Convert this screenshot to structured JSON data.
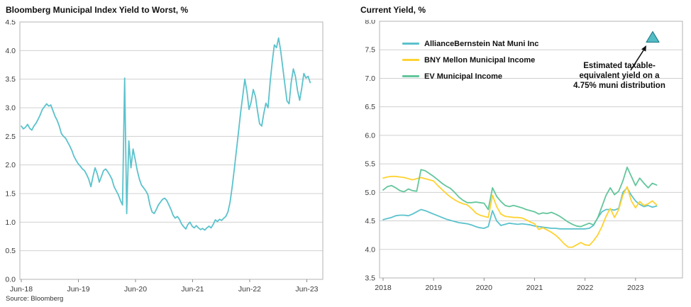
{
  "chart_data": [
    {
      "id": "bloomberg-muni-index-ytw",
      "type": "line",
      "title": "Bloomberg Municipal Index Yield to Worst, %",
      "source": "Source: Bloomberg",
      "grid": "horizontal",
      "legend_position": "none",
      "ylim": [
        0.0,
        4.5
      ],
      "yticks": [
        "0.0",
        "0.5",
        "1.0",
        "1.5",
        "2.0",
        "2.5",
        "3.0",
        "3.5",
        "4.0",
        "4.5"
      ],
      "xlim": [
        2018.395,
        2023.7
      ],
      "xticks": [
        {
          "label": "Jun-18",
          "x": 2018.42
        },
        {
          "label": "Jun-19",
          "x": 2019.42
        },
        {
          "label": "Jun-20",
          "x": 2020.42
        },
        {
          "label": "Jun-21",
          "x": 2021.42
        },
        {
          "label": "Jun-22",
          "x": 2022.42
        },
        {
          "label": "Jun-23",
          "x": 2023.42
        }
      ],
      "series": [
        {
          "name": "Bloomberg Municipal Index Yield to Worst",
          "color": "#5BC2CC",
          "x_start": 2018.42,
          "x_step": 0.03693,
          "values": [
            2.68,
            2.63,
            2.66,
            2.71,
            2.64,
            2.61,
            2.68,
            2.73,
            2.8,
            2.88,
            2.97,
            3.02,
            3.07,
            3.03,
            3.05,
            2.95,
            2.85,
            2.78,
            2.68,
            2.55,
            2.5,
            2.47,
            2.4,
            2.33,
            2.25,
            2.15,
            2.08,
            2.02,
            1.98,
            1.93,
            1.9,
            1.83,
            1.75,
            1.62,
            1.8,
            1.95,
            1.85,
            1.7,
            1.8,
            1.9,
            1.93,
            1.88,
            1.82,
            1.75,
            1.62,
            1.55,
            1.48,
            1.38,
            1.3,
            3.52,
            1.15,
            2.42,
            1.95,
            2.28,
            2.1,
            1.9,
            1.75,
            1.65,
            1.6,
            1.55,
            1.48,
            1.3,
            1.18,
            1.15,
            1.22,
            1.3,
            1.35,
            1.4,
            1.42,
            1.38,
            1.3,
            1.22,
            1.12,
            1.07,
            1.1,
            1.05,
            0.97,
            0.92,
            0.88,
            0.96,
            1.0,
            0.93,
            0.9,
            0.94,
            0.9,
            0.87,
            0.89,
            0.86,
            0.9,
            0.93,
            0.9,
            0.96,
            1.04,
            1.01,
            1.05,
            1.03,
            1.07,
            1.1,
            1.18,
            1.35,
            1.62,
            1.92,
            2.25,
            2.58,
            2.92,
            3.2,
            3.5,
            3.28,
            2.97,
            3.1,
            3.32,
            3.2,
            2.95,
            2.72,
            2.68,
            2.9,
            3.08,
            3.0,
            3.45,
            3.8,
            4.1,
            4.05,
            4.22,
            4.0,
            3.7,
            3.4,
            3.12,
            3.07,
            3.45,
            3.68,
            3.55,
            3.3,
            3.13,
            3.35,
            3.6,
            3.52,
            3.55,
            3.44
          ]
        }
      ]
    },
    {
      "id": "current-yield",
      "type": "line",
      "title": "Current Yield, %",
      "grid": "horizontal",
      "legend_position": "top-left-inside",
      "ylim": [
        3.5,
        8.0
      ],
      "yticks": [
        "3.5",
        "4.0",
        "4.5",
        "5.0",
        "5.5",
        "6.0",
        "6.5",
        "7.0",
        "7.5",
        "8.0"
      ],
      "xlim": [
        2017.93,
        2023.93
      ],
      "xticks": [
        {
          "label": "2018",
          "x": 2018
        },
        {
          "label": "2019",
          "x": 2019
        },
        {
          "label": "2020",
          "x": 2020
        },
        {
          "label": "2021",
          "x": 2021
        },
        {
          "label": "2022",
          "x": 2022
        },
        {
          "label": "2023",
          "x": 2023
        }
      ],
      "series": [
        {
          "name": "AllianceBernstein Nat Muni Inc",
          "color": "#5BC2CC",
          "x_start": 2018.0,
          "x_step": 0.083333,
          "values": [
            4.52,
            4.54,
            4.56,
            4.59,
            4.6,
            4.6,
            4.59,
            4.62,
            4.66,
            4.7,
            4.68,
            4.65,
            4.62,
            4.59,
            4.56,
            4.53,
            4.51,
            4.49,
            4.47,
            4.46,
            4.45,
            4.43,
            4.4,
            4.38,
            4.37,
            4.4,
            4.68,
            4.5,
            4.42,
            4.44,
            4.46,
            4.45,
            4.44,
            4.45,
            4.44,
            4.43,
            4.41,
            4.4,
            4.39,
            4.38,
            4.37,
            4.37,
            4.36,
            4.36,
            4.36,
            4.36,
            4.36,
            4.36,
            4.36,
            4.37,
            4.42,
            4.55,
            4.66,
            4.7,
            4.7,
            4.69,
            4.72,
            5.0,
            5.08,
            4.95,
            4.85,
            4.79,
            4.75,
            4.77,
            4.74,
            4.76
          ]
        },
        {
          "name": "BNY Mellon Municipal Income",
          "color": "#FFD231",
          "x_start": 2018.0,
          "x_step": 0.083333,
          "values": [
            5.25,
            5.27,
            5.28,
            5.28,
            5.27,
            5.26,
            5.24,
            5.22,
            5.24,
            5.26,
            5.24,
            5.22,
            5.2,
            5.12,
            5.05,
            4.98,
            4.92,
            4.87,
            4.83,
            4.8,
            4.78,
            4.72,
            4.64,
            4.6,
            4.58,
            4.56,
            4.95,
            4.75,
            4.62,
            4.58,
            4.57,
            4.56,
            4.56,
            4.55,
            4.52,
            4.48,
            4.45,
            4.35,
            4.38,
            4.34,
            4.3,
            4.25,
            4.18,
            4.1,
            4.04,
            4.04,
            4.08,
            4.12,
            4.08,
            4.07,
            4.15,
            4.25,
            4.4,
            4.58,
            4.72,
            4.56,
            4.7,
            4.95,
            5.1,
            4.85,
            4.73,
            4.84,
            4.77,
            4.8,
            4.85,
            4.78
          ]
        },
        {
          "name": "EV Municipal Income",
          "color": "#63C69B",
          "x_start": 2018.0,
          "x_step": 0.083333,
          "values": [
            5.04,
            5.1,
            5.12,
            5.08,
            5.03,
            5.01,
            5.06,
            5.03,
            5.02,
            5.4,
            5.38,
            5.33,
            5.28,
            5.22,
            5.16,
            5.11,
            5.07,
            5.0,
            4.92,
            4.86,
            4.82,
            4.82,
            4.83,
            4.82,
            4.81,
            4.7,
            5.08,
            4.93,
            4.84,
            4.77,
            4.75,
            4.77,
            4.75,
            4.73,
            4.7,
            4.68,
            4.66,
            4.62,
            4.64,
            4.63,
            4.65,
            4.62,
            4.58,
            4.53,
            4.48,
            4.44,
            4.41,
            4.4,
            4.43,
            4.46,
            4.43,
            4.55,
            4.75,
            4.95,
            5.08,
            4.96,
            5.02,
            5.2,
            5.44,
            5.28,
            5.12,
            5.25,
            5.16,
            5.08,
            5.16,
            5.13
          ]
        }
      ],
      "marker": {
        "shape": "triangle-up",
        "x": 2023.34,
        "y": 7.72,
        "color": "#53BDC6",
        "border": "#27808E"
      },
      "annotation": {
        "line1": "Estimated taxable-",
        "line2": "equivalent yield on a",
        "line3": "4.75% muni distribution"
      }
    }
  ]
}
